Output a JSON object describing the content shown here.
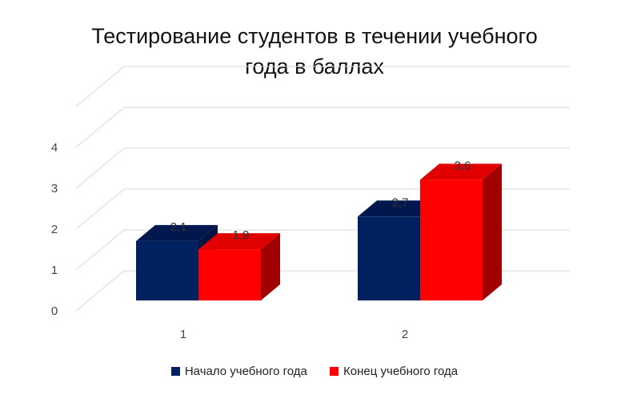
{
  "chart_data": {
    "type": "bar",
    "title_lines": [
      "Тестирование  студентов в течении учебного",
      "года в баллах"
    ],
    "categories": [
      "1",
      "2"
    ],
    "series": [
      {
        "name": "Начало учебного года",
        "values": [
          2.1,
          2.7
        ],
        "color": "#002060",
        "side_color": "#001440",
        "top_color": "#00184d"
      },
      {
        "name": "Конец учебного года",
        "values": [
          1.9,
          3.6
        ],
        "color": "#ff0000",
        "side_color": "#a00000",
        "top_color": "#e00000"
      }
    ],
    "y_ticks": [
      0,
      1,
      2,
      3,
      4
    ],
    "ylim": [
      0,
      5
    ],
    "grid": true,
    "legend_position": "bottom",
    "data_labels": [
      "2,1",
      "1,9",
      "2,7",
      "3,6"
    ]
  }
}
